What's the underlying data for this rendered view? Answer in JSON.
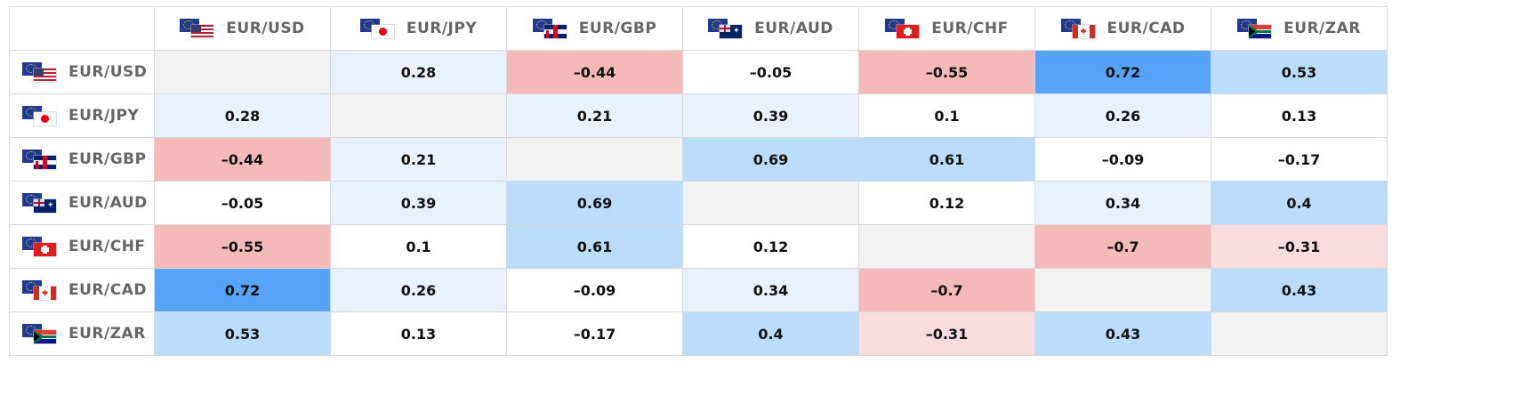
{
  "colors": {
    "strong_pos": "#56a3f7",
    "mid_pos": "#bcdcfb",
    "weak_pos": "#e8f2fc",
    "neutral": "#ffffff",
    "weak_neg": "#f9dcdc",
    "strong_neg": "#f4b9b9",
    "diagonal": "#f2f2f2"
  },
  "pairs": [
    {
      "label": "EUR/USD",
      "flag": "eur-usd-flag-icon"
    },
    {
      "label": "EUR/JPY",
      "flag": "eur-jpy-flag-icon"
    },
    {
      "label": "EUR/GBP",
      "flag": "eur-gbp-flag-icon"
    },
    {
      "label": "EUR/AUD",
      "flag": "eur-aud-flag-icon"
    },
    {
      "label": "EUR/CHF",
      "flag": "eur-chf-flag-icon"
    },
    {
      "label": "EUR/CAD",
      "flag": "eur-cad-flag-icon"
    },
    {
      "label": "EUR/ZAR",
      "flag": "eur-zar-flag-icon"
    }
  ],
  "matrix": [
    [
      "",
      "0.28",
      "-0.44",
      "-0.05",
      "-0.55",
      "0.72",
      "0.53"
    ],
    [
      "0.28",
      "",
      "0.21",
      "0.39",
      "0.1",
      "0.26",
      "0.13"
    ],
    [
      "-0.44",
      "0.21",
      "",
      "0.69",
      "0.61",
      "-0.09",
      "-0.17"
    ],
    [
      "-0.05",
      "0.39",
      "0.69",
      "",
      "0.12",
      "0.34",
      "0.4"
    ],
    [
      "-0.55",
      "0.1",
      "0.61",
      "0.12",
      "",
      "-0.7",
      "-0.31"
    ],
    [
      "0.72",
      "0.26",
      "-0.09",
      "0.34",
      "-0.7",
      "",
      "0.43"
    ],
    [
      "0.53",
      "0.13",
      "-0.17",
      "0.4",
      "-0.31",
      "0.43",
      ""
    ]
  ]
}
